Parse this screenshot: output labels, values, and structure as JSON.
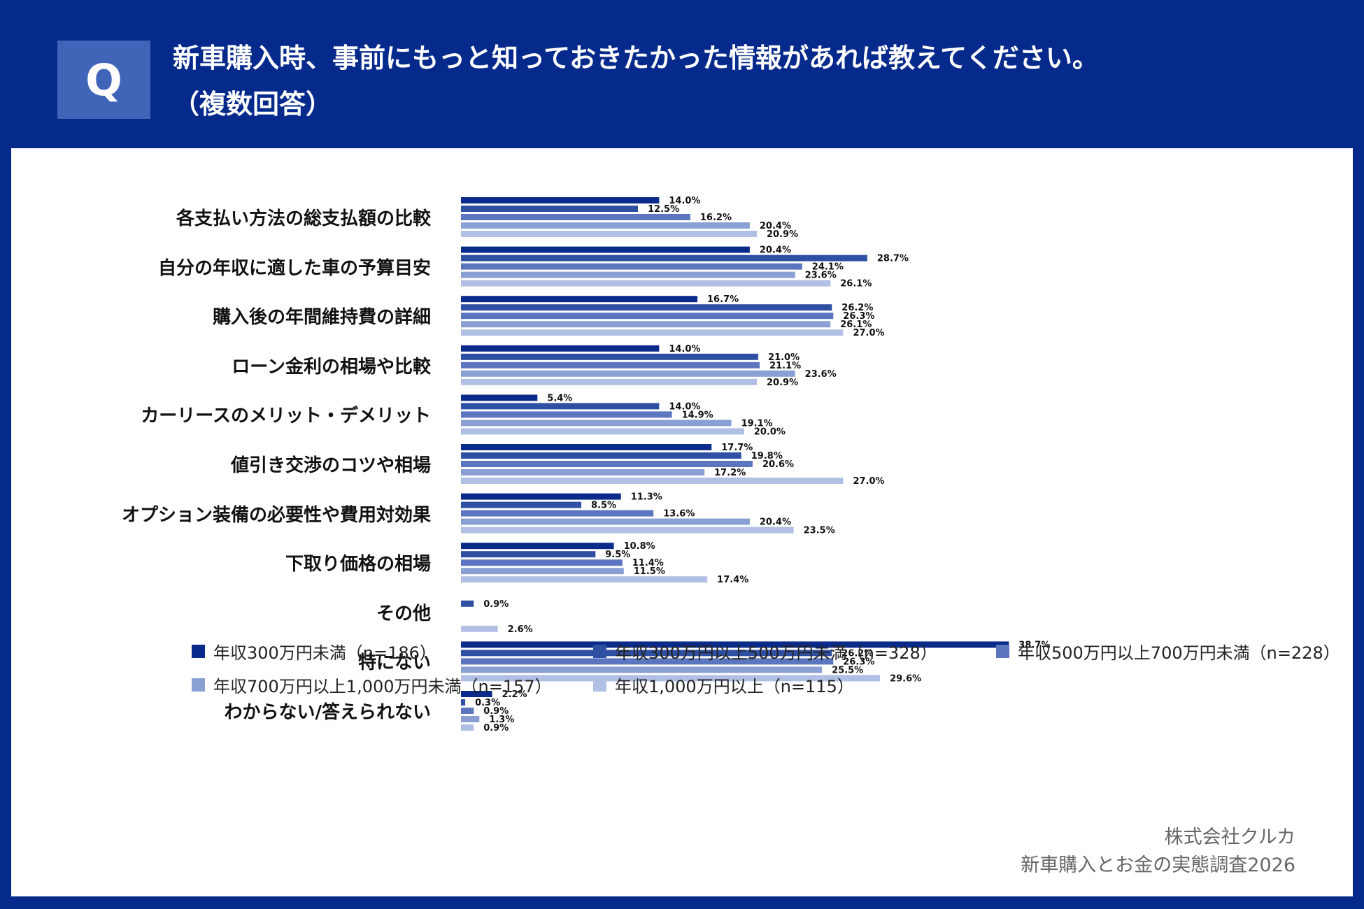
{
  "header": {
    "q_label": "Q",
    "question_line1": "新車購入時、事前にもっと知っておきたかった情報があれば教えてください。",
    "question_line2": "（複数回答）"
  },
  "colors": {
    "background": "#062a8c",
    "panel": "#ffffff",
    "series": [
      "#0b2b8a",
      "#2f4fa3",
      "#5b76be",
      "#8a9fd3",
      "#b1bfe4"
    ]
  },
  "source": {
    "line1": "株式会社クルカ",
    "line2": "新車購入とお金の実態調査2026"
  },
  "chart_data": {
    "type": "bar",
    "orientation": "horizontal",
    "title": "",
    "xlabel": "",
    "ylabel": "",
    "unit": "%",
    "xlim": [
      0,
      38.7
    ],
    "grid": false,
    "legend_position": "bottom",
    "categories": [
      "各支払い方法の総支払額の比較",
      "自分の年収に適した車の予算目安",
      "購入後の年間維持費の詳細",
      "ローン金利の相場や比較",
      "カーリースのメリット・デメリット",
      "値引き交渉のコツや相場",
      "オプション装備の必要性や費用対効果",
      "下取り価格の相場",
      "その他",
      "特にない",
      "わからない/答えられない"
    ],
    "series": [
      {
        "name": "年収300万円未満（n=186）",
        "values": [
          14.0,
          20.4,
          16.7,
          14.0,
          5.4,
          17.7,
          11.3,
          10.8,
          null,
          38.7,
          2.2
        ]
      },
      {
        "name": "年収300万円以上500万円未満（n=328）",
        "values": [
          12.5,
          28.7,
          26.2,
          21.0,
          14.0,
          19.8,
          8.5,
          9.5,
          0.9,
          26.2,
          0.3
        ]
      },
      {
        "name": "年収500万円以上700万円未満（n=228）",
        "values": [
          16.2,
          24.1,
          26.3,
          21.1,
          14.9,
          20.6,
          13.6,
          11.4,
          null,
          26.3,
          0.9
        ]
      },
      {
        "name": "年収700万円以上1,000万円未満（n=157）",
        "values": [
          20.4,
          23.6,
          26.1,
          23.6,
          19.1,
          17.2,
          20.4,
          11.5,
          null,
          25.5,
          1.3
        ]
      },
      {
        "name": "年収1,000万円以上（n=115）",
        "values": [
          20.9,
          26.1,
          27.0,
          20.9,
          20.0,
          27.0,
          23.5,
          17.4,
          2.6,
          29.6,
          0.9
        ]
      }
    ]
  }
}
